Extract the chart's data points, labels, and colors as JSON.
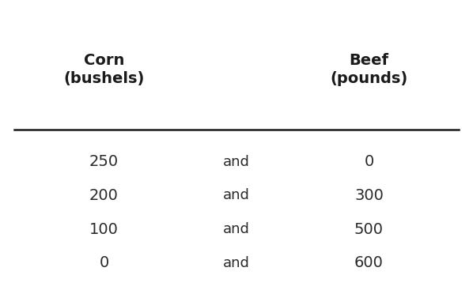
{
  "col1_header": "Corn\n(bushels)",
  "col2_header": "Beef\n(pounds)",
  "connector": "and",
  "corn_values": [
    "250",
    "200",
    "100",
    "0"
  ],
  "beef_values": [
    "0",
    "300",
    "500",
    "600"
  ],
  "background_color": "#ffffff",
  "border_color": "#a0a0a0",
  "header_color": "#1a1a1a",
  "data_color": "#2a2a2a",
  "line_color": "#1a1a1a",
  "header_fontsize": 14,
  "data_fontsize": 14,
  "connector_fontsize": 13,
  "fig_bg_color": "#b0b0b0"
}
